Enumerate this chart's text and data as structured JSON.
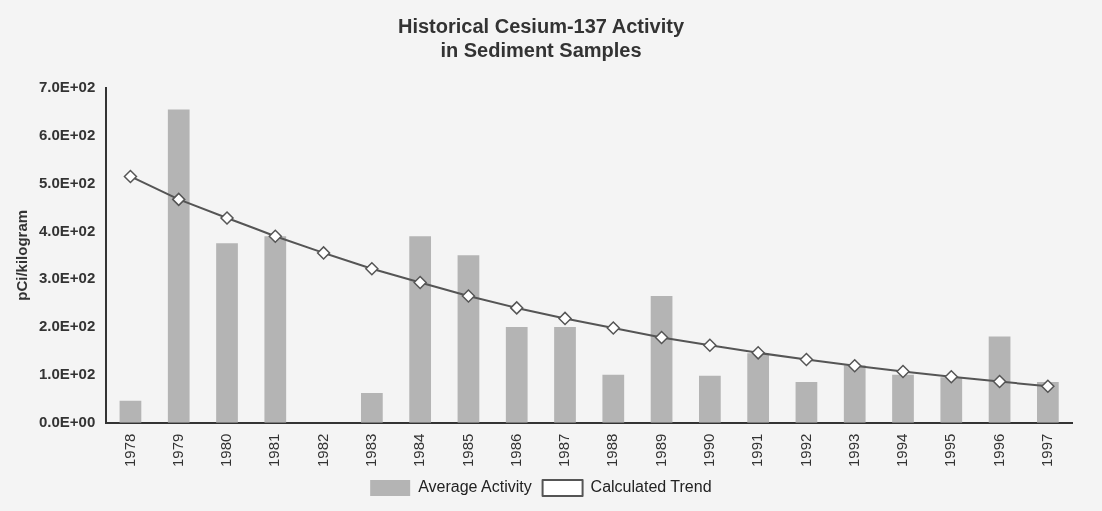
{
  "chart_data": {
    "type": "bar",
    "title": [
      "Historical Cesium-137 Activity",
      "in Sediment Samples"
    ],
    "ylabel": "pCi/kilogram",
    "categories": [
      "1978",
      "1979",
      "1980",
      "1981",
      "1982",
      "1983",
      "1984",
      "1985",
      "1986",
      "1987",
      "1988",
      "1989",
      "1990",
      "1991",
      "1992",
      "1993",
      "1994",
      "1995",
      "1996",
      "1997"
    ],
    "series": [
      {
        "name": "Average Activity",
        "color": "#b4b4b4",
        "values": [
          46,
          655,
          375,
          390,
          null,
          62,
          390,
          350,
          200,
          200,
          100,
          265,
          98,
          145,
          85,
          120,
          100,
          95,
          180,
          85
        ]
      },
      {
        "name": "Calculated Trend",
        "type": "line",
        "color": "#555555",
        "marker": "diamond",
        "values": [
          515,
          467,
          428,
          390,
          355,
          322,
          293,
          265,
          240,
          218,
          198,
          178,
          162,
          146,
          132,
          119,
          107,
          96,
          86,
          76
        ]
      }
    ],
    "ylim": [
      0,
      700
    ],
    "yticks": [
      {
        "value": 0,
        "label": "0.0E+00"
      },
      {
        "value": 100,
        "label": "1.0E+02"
      },
      {
        "value": 200,
        "label": "2.0E+02"
      },
      {
        "value": 300,
        "label": "3.0E+02"
      },
      {
        "value": 400,
        "label": "4.0E+02"
      },
      {
        "value": 500,
        "label": "5.0E+02"
      },
      {
        "value": 600,
        "label": "6.0E+02"
      },
      {
        "value": 700,
        "label": "7.0E+02"
      }
    ],
    "grid": false,
    "legend": "bottom"
  }
}
